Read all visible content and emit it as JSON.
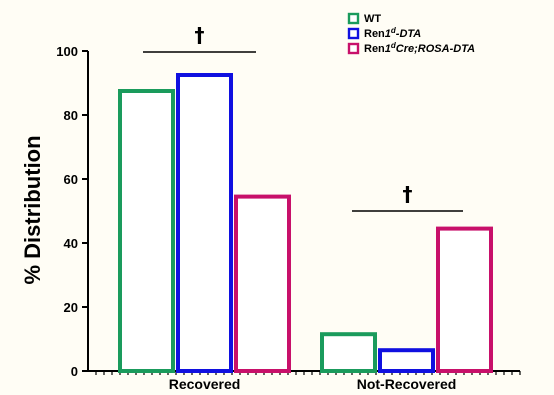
{
  "chart_data": {
    "type": "bar",
    "ylabel": "% Distribution",
    "ylim": [
      0,
      100
    ],
    "yticks": [
      0,
      20,
      40,
      60,
      80,
      100
    ],
    "categories": [
      "Recovered",
      "Not-Recovered"
    ],
    "series": [
      {
        "name": "WT",
        "color": "#1a9b5c",
        "values": [
          87.5,
          11.5
        ]
      },
      {
        "name": "Ren1d-DTA",
        "color": "#1010e0",
        "values": [
          92.5,
          6.5
        ]
      },
      {
        "name": "Ren1dCre;ROSA-DTA",
        "color": "#c8106a",
        "values": [
          54.5,
          44.5
        ]
      }
    ],
    "annotations": [
      {
        "symbol": "†",
        "category": "Recovered"
      },
      {
        "symbol": "†",
        "category": "Not-Recovered"
      }
    ],
    "legend": {
      "placement": "top-right",
      "items": [
        {
          "base": "Ren",
          "italic": "1",
          "sup": "d",
          "rest": "",
          "rest_italic": "-DTA"
        },
        {
          "base": "Ren",
          "italic": "1",
          "sup": "d",
          "rest": "",
          "rest_italic": "Cre;ROSA-DTA"
        }
      ]
    }
  }
}
